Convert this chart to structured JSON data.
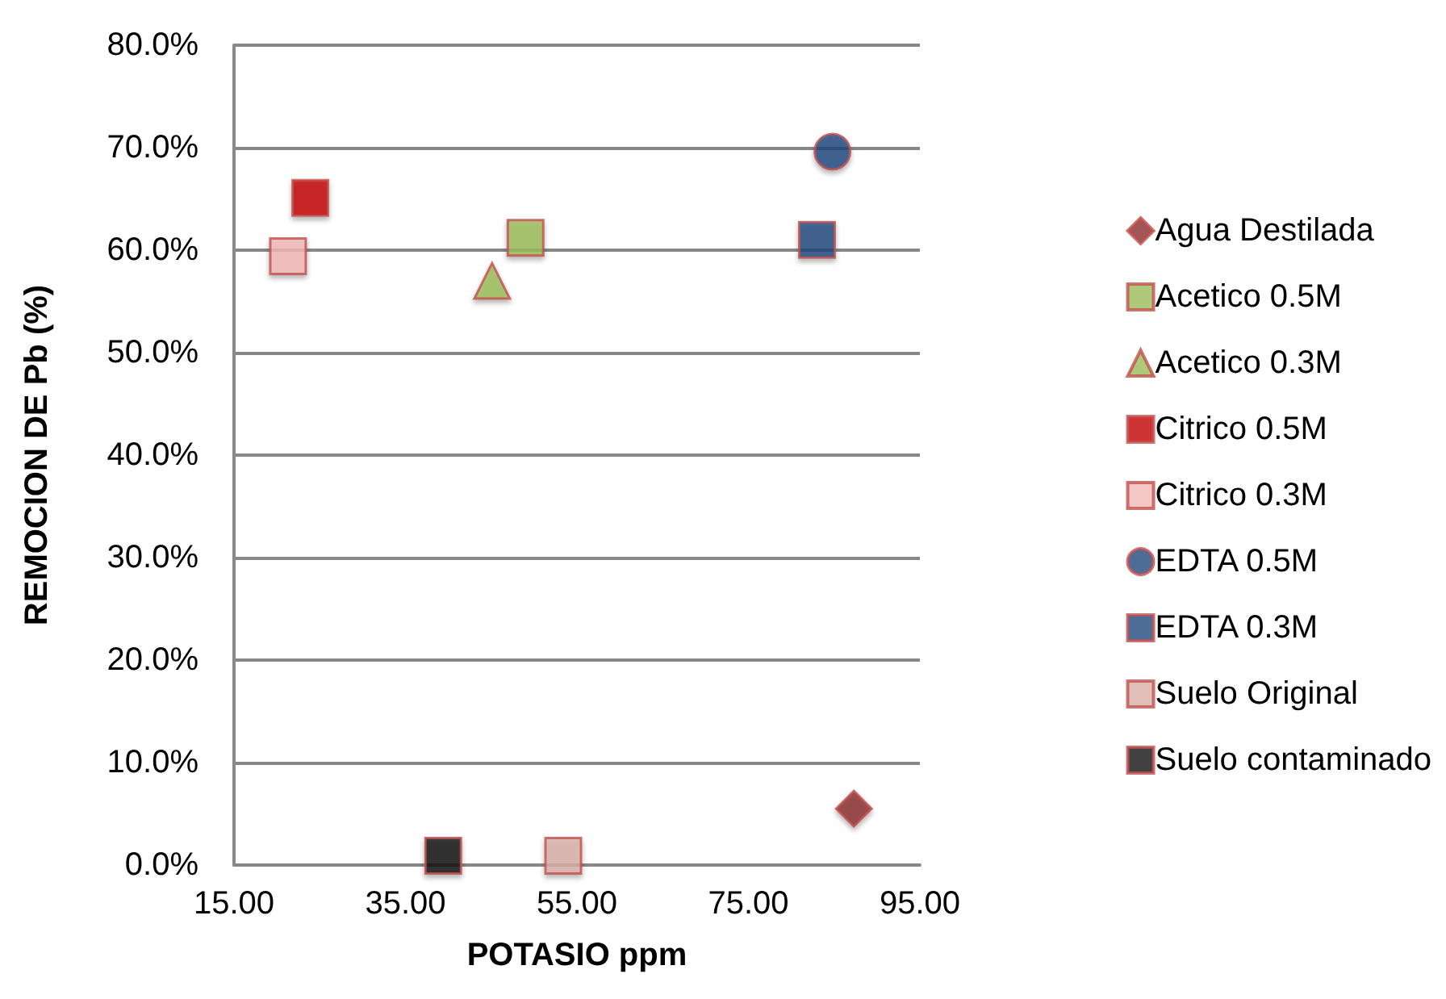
{
  "chart_data": {
    "type": "scatter",
    "xlabel": "POTASIO ppm",
    "ylabel": "REMOCION DE Pb (%)",
    "xlim": [
      15,
      95
    ],
    "xticks": [
      {
        "value": 15,
        "label": "15.00"
      },
      {
        "value": 35,
        "label": "35.00"
      },
      {
        "value": 55,
        "label": "55.00"
      },
      {
        "value": 75,
        "label": "75.00"
      },
      {
        "value": 95,
        "label": "95.00"
      }
    ],
    "ylim": [
      0,
      80
    ],
    "yticks": [
      {
        "value": 0,
        "label": "0.0%"
      },
      {
        "value": 10,
        "label": "10.0%"
      },
      {
        "value": 20,
        "label": "20.0%"
      },
      {
        "value": 30,
        "label": "30.0%"
      },
      {
        "value": 40,
        "label": "40.0%"
      },
      {
        "value": 50,
        "label": "50.0%"
      },
      {
        "value": 60,
        "label": "60.0%"
      },
      {
        "value": 70,
        "label": "70.0%"
      },
      {
        "value": 80,
        "label": "80.0%"
      }
    ],
    "grid": "y",
    "legend": "right",
    "series": [
      {
        "name": "Agua Destilada",
        "color": "#8b2a2a",
        "marker": "diamond",
        "x": [
          87.3
        ],
        "values": [
          5.5
        ]
      },
      {
        "name": "Acetico 0.5M",
        "color": "#9bbb59",
        "marker": "square",
        "x": [
          49.0
        ],
        "values": [
          61.2
        ]
      },
      {
        "name": "Acetico 0.3M",
        "color": "#9bbb59",
        "marker": "triangle",
        "x": [
          45.1
        ],
        "values": [
          57.0
        ]
      },
      {
        "name": "Citrico 0.5M",
        "color": "#c00000",
        "marker": "square",
        "x": [
          23.9
        ],
        "values": [
          65.1
        ]
      },
      {
        "name": "Citrico 0.3M",
        "color": "#f2b8b8",
        "marker": "square",
        "x": [
          21.3
        ],
        "values": [
          59.4
        ]
      },
      {
        "name": "EDTA 0.5M",
        "color": "#1f497d",
        "marker": "circle",
        "x": [
          84.8
        ],
        "values": [
          69.6
        ]
      },
      {
        "name": "EDTA 0.3M",
        "color": "#1f497d",
        "marker": "square",
        "x": [
          83.0
        ],
        "values": [
          61.0
        ]
      },
      {
        "name": "Suelo Original",
        "color": "#d9b0a8",
        "marker": "square",
        "x": [
          53.4
        ],
        "values": [
          0.9
        ]
      },
      {
        "name": "Suelo contaminado",
        "color": "#111111",
        "marker": "square",
        "x": [
          39.4
        ],
        "values": [
          0.9
        ]
      }
    ]
  }
}
